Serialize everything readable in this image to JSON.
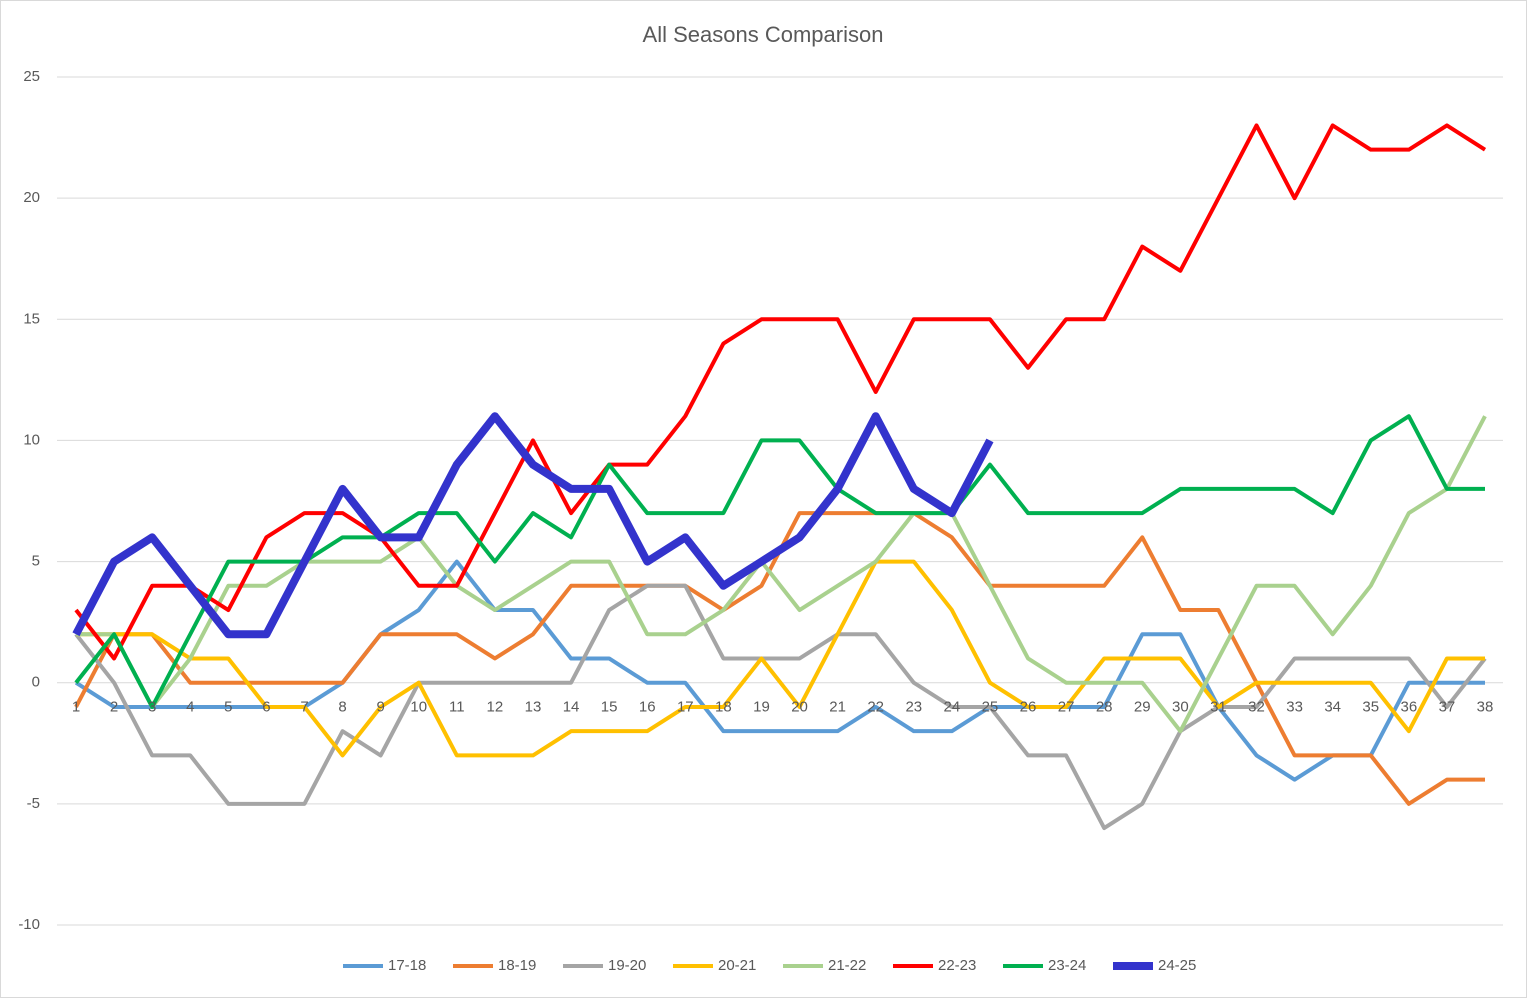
{
  "chart_data": {
    "type": "line",
    "title": "All Seasons Comparison",
    "categories": [
      "1",
      "2",
      "3",
      "4",
      "5",
      "6",
      "7",
      "8",
      "9",
      "10",
      "11",
      "12",
      "13",
      "14",
      "15",
      "16",
      "17",
      "18",
      "19",
      "20",
      "21",
      "22",
      "23",
      "24",
      "25",
      "26",
      "27",
      "28",
      "29",
      "30",
      "31",
      "32",
      "33",
      "34",
      "35",
      "36",
      "37",
      "38"
    ],
    "ylim": [
      -10,
      25
    ],
    "yticks": [
      -10,
      -5,
      0,
      5,
      10,
      15,
      20,
      25
    ],
    "grid": true,
    "legend": "bottom",
    "series": [
      {
        "name": "17-18",
        "color": "#5b9bd5",
        "line_width": 4,
        "values": [
          0,
          -1,
          -1,
          -1,
          -1,
          -1,
          -1,
          0,
          2,
          3,
          5,
          3,
          3,
          1,
          1,
          0,
          0,
          -2,
          -2,
          -2,
          -2,
          -1,
          -2,
          -2,
          -1,
          -1,
          -1,
          -1,
          2,
          2,
          -1,
          -3,
          -4,
          -3,
          -3,
          0,
          0,
          0
        ]
      },
      {
        "name": "18-19",
        "color": "#ed7d31",
        "line_width": 4,
        "values": [
          -1,
          2,
          2,
          0,
          0,
          0,
          0,
          0,
          2,
          2,
          2,
          1,
          2,
          4,
          4,
          4,
          4,
          3,
          4,
          7,
          7,
          7,
          7,
          6,
          4,
          4,
          4,
          4,
          6,
          3,
          3,
          0,
          -3,
          -3,
          -3,
          -5,
          -4,
          -4
        ]
      },
      {
        "name": "19-20",
        "color": "#a5a5a5",
        "line_width": 4,
        "values": [
          2,
          0,
          -3,
          -3,
          -5,
          -5,
          -5,
          -2,
          -3,
          0,
          0,
          0,
          0,
          0,
          3,
          4,
          4,
          1,
          1,
          1,
          2,
          2,
          0,
          -1,
          -1,
          -3,
          -3,
          -6,
          -5,
          -2,
          -1,
          -1,
          1,
          1,
          1,
          1,
          -1,
          1
        ]
      },
      {
        "name": "20-21",
        "color": "#ffc000",
        "line_width": 4,
        "values": [
          2,
          2,
          2,
          1,
          1,
          -1,
          -1,
          -3,
          -1,
          0,
          -3,
          -3,
          -3,
          -2,
          -2,
          -2,
          -1,
          -1,
          1,
          -1,
          2,
          5,
          5,
          3,
          0,
          -1,
          -1,
          1,
          1,
          1,
          -1,
          0,
          0,
          0,
          0,
          -2,
          1,
          1
        ]
      },
      {
        "name": "21-22",
        "color": "#a9d18e",
        "line_width": 4,
        "values": [
          2,
          2,
          -1,
          1,
          4,
          4,
          5,
          5,
          5,
          6,
          4,
          3,
          4,
          5,
          5,
          2,
          2,
          3,
          5,
          3,
          4,
          5,
          7,
          7,
          4,
          1,
          0,
          0,
          0,
          -2,
          1,
          4,
          4,
          2,
          4,
          7,
          8,
          11
        ]
      },
      {
        "name": "22-23",
        "color": "#ff0000",
        "line_width": 4,
        "values": [
          3,
          1,
          4,
          4,
          3,
          6,
          7,
          7,
          6,
          4,
          4,
          7,
          10,
          7,
          9,
          9,
          11,
          14,
          15,
          15,
          15,
          12,
          15,
          15,
          15,
          13,
          15,
          15,
          18,
          17,
          20,
          23,
          20,
          23,
          22,
          22,
          23,
          22
        ]
      },
      {
        "name": "23-24",
        "color": "#00b050",
        "line_width": 4,
        "values": [
          0,
          2,
          -1,
          2,
          5,
          5,
          5,
          6,
          6,
          7,
          7,
          5,
          7,
          6,
          9,
          7,
          7,
          7,
          10,
          10,
          8,
          7,
          7,
          7,
          9,
          7,
          7,
          7,
          7,
          8,
          8,
          8,
          8,
          7,
          10,
          11,
          8,
          8
        ]
      },
      {
        "name": "24-25",
        "color": "#3333cc",
        "line_width": 8,
        "values": [
          2,
          5,
          6,
          4,
          2,
          2,
          5,
          8,
          6,
          6,
          9,
          11,
          9,
          8,
          8,
          5,
          6,
          4,
          5,
          6,
          8,
          11,
          8,
          7,
          10,
          null,
          null,
          null,
          null,
          null,
          null,
          null,
          null,
          null,
          null,
          null,
          null,
          null
        ]
      }
    ]
  }
}
